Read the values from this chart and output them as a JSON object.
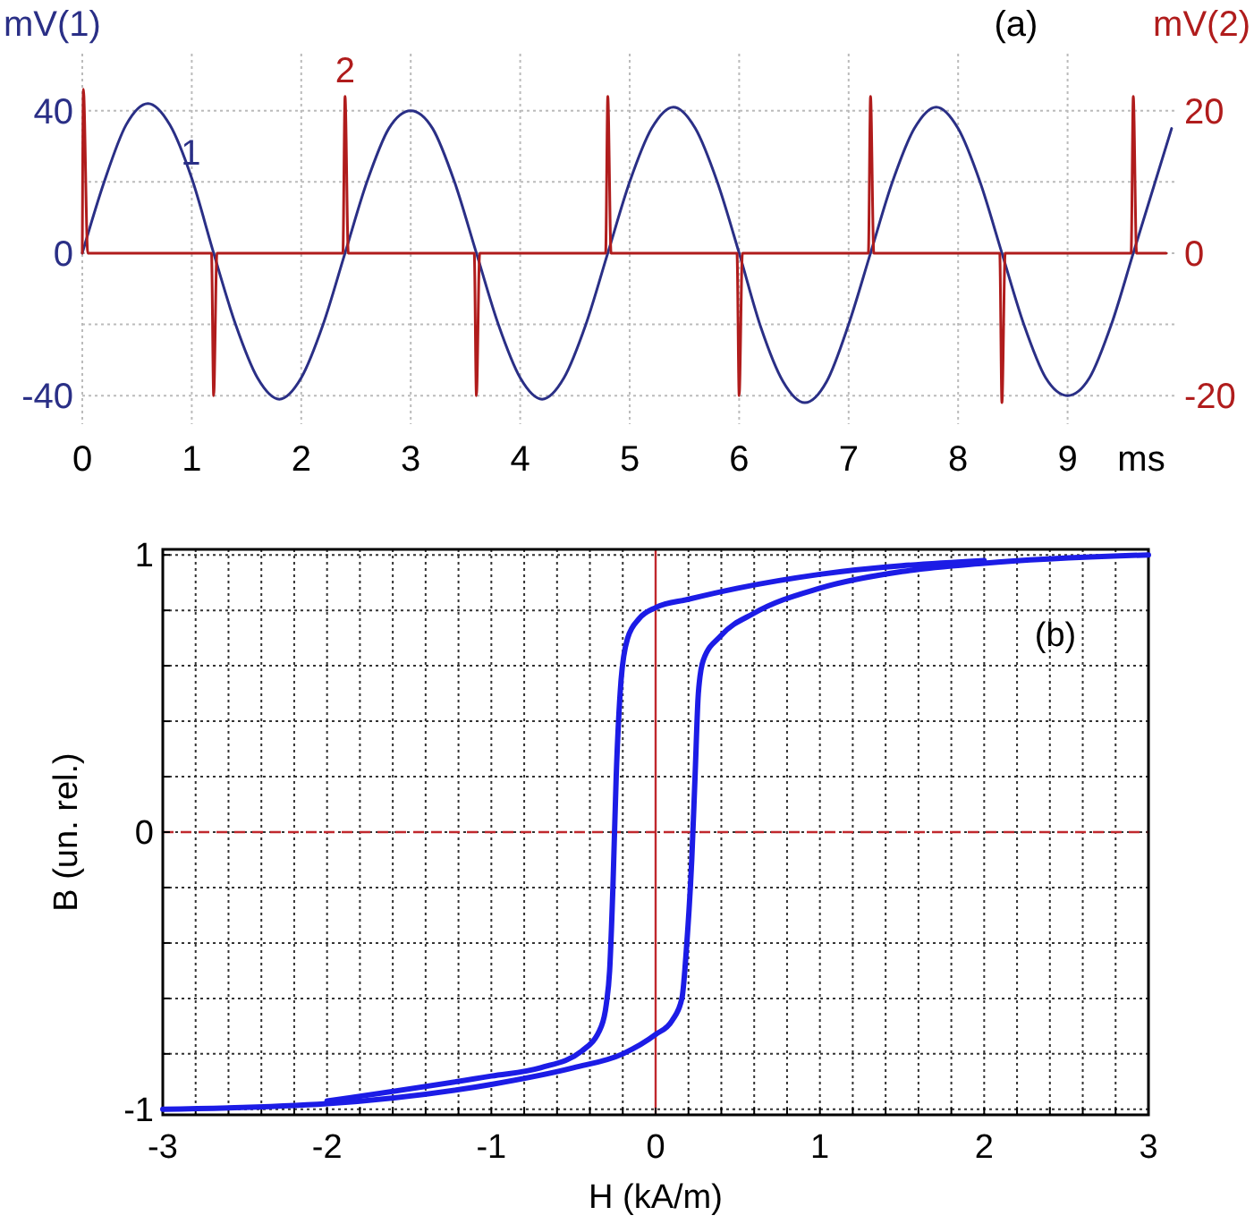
{
  "chart_data": [
    {
      "type": "line",
      "xlabel": "ms",
      "ylabel": "mV(1)",
      "y2label": "mV(2)",
      "annotations": [
        "(a)"
      ],
      "grid": true,
      "marker": "none",
      "line_style": "solid",
      "xlim": [
        0,
        10
      ],
      "xticks": [
        0,
        1,
        2,
        3,
        4,
        5,
        6,
        7,
        8,
        9
      ],
      "ylim": [
        -48,
        56
      ],
      "yticks": [
        -40,
        {
          "value": -20,
          "label": null
        },
        0,
        {
          "value": 20,
          "label": null
        },
        40
      ],
      "y2lim": [
        -24,
        28
      ],
      "y2ticks": [
        -20,
        0,
        20
      ],
      "series": [
        {
          "name": "1",
          "color": "#2a2f86",
          "x": [
            0,
            0.2,
            0.4,
            0.6,
            0.8,
            1.0,
            1.2,
            1.4,
            1.6,
            1.8,
            2.0,
            2.2,
            2.4,
            2.6,
            2.8,
            3.0,
            3.2,
            3.4,
            3.6,
            3.8,
            4.0,
            4.2,
            4.4,
            4.6,
            4.8,
            5.0,
            5.2,
            5.4,
            5.6,
            5.8,
            6.0,
            6.2,
            6.4,
            6.6,
            6.8,
            7.0,
            7.2,
            7.4,
            7.6,
            7.8,
            8.0,
            8.2,
            8.4,
            8.6,
            8.8,
            9.0,
            9.2,
            9.4,
            9.6,
            9.8,
            9.95
          ],
          "values": [
            0,
            20,
            36,
            42,
            36,
            21,
            0,
            -20,
            -35,
            -41,
            -35,
            -20,
            0,
            20,
            35,
            40,
            35,
            20,
            0,
            -20,
            -35,
            -41,
            -35,
            -20,
            0,
            20,
            35,
            41,
            35,
            20,
            0,
            -21,
            -36,
            -42,
            -36,
            -20,
            0,
            20,
            35,
            41,
            35,
            20,
            0,
            -20,
            -35,
            -40,
            -35,
            -20,
            0,
            20,
            35
          ]
        },
        {
          "name": "2",
          "color": "#b01c1c",
          "axis": "y2",
          "x": [
            0,
            0.01,
            0.05,
            1.18,
            1.2,
            1.23,
            2.38,
            2.4,
            2.43,
            3.58,
            3.6,
            3.63,
            4.78,
            4.8,
            4.83,
            5.98,
            6.0,
            6.03,
            7.18,
            7.2,
            7.23,
            8.38,
            8.4,
            8.43,
            9.58,
            9.6,
            9.63,
            9.9
          ],
          "values": [
            0,
            23,
            0,
            0,
            -20,
            0,
            0,
            22,
            0,
            0,
            -20,
            0,
            0,
            22,
            0,
            0,
            -20,
            0,
            0,
            22,
            0,
            0,
            -21,
            0,
            0,
            22,
            0,
            0
          ]
        }
      ]
    },
    {
      "type": "line",
      "xlabel": "H (kA/m)",
      "ylabel": "B (un. rel.)",
      "annotations": [
        "(b)"
      ],
      "grid": true,
      "marker": "none",
      "line_style": "solid",
      "xlim": [
        -3,
        3
      ],
      "xticks": [
        -3,
        {
          "value": -2.8,
          "label": null
        },
        {
          "value": -2.6,
          "label": null
        },
        {
          "value": -2.4,
          "label": null
        },
        {
          "value": -2.2,
          "label": null
        },
        -2,
        {
          "value": -1.8,
          "label": null
        },
        {
          "value": -1.6,
          "label": null
        },
        {
          "value": -1.4,
          "label": null
        },
        {
          "value": -1.2,
          "label": null
        },
        -1,
        {
          "value": -0.8,
          "label": null
        },
        {
          "value": -0.6,
          "label": null
        },
        {
          "value": -0.4,
          "label": null
        },
        {
          "value": -0.2,
          "label": null
        },
        0,
        {
          "value": 0.2,
          "label": null
        },
        {
          "value": 0.4,
          "label": null
        },
        {
          "value": 0.6,
          "label": null
        },
        {
          "value": 0.8,
          "label": null
        },
        1,
        {
          "value": 1.2,
          "label": null
        },
        {
          "value": 1.4,
          "label": null
        },
        {
          "value": 1.6,
          "label": null
        },
        {
          "value": 1.8,
          "label": null
        },
        2,
        {
          "value": 2.2,
          "label": null
        },
        {
          "value": 2.4,
          "label": null
        },
        {
          "value": 2.6,
          "label": null
        },
        {
          "value": 2.8,
          "label": null
        },
        3
      ],
      "ylim": [
        -1.02,
        1.02
      ],
      "yticks": [
        -1,
        {
          "value": -0.8,
          "label": null
        },
        {
          "value": -0.6,
          "label": null
        },
        {
          "value": -0.4,
          "label": null
        },
        {
          "value": -0.2,
          "label": null
        },
        0,
        {
          "value": 0.2,
          "label": null
        },
        {
          "value": 0.4,
          "label": null
        },
        {
          "value": 0.6,
          "label": null
        },
        {
          "value": 0.8,
          "label": null
        },
        1
      ],
      "ref_lines": [
        {
          "axis": "x",
          "value": 0,
          "color": "#c0282d",
          "line_style": "solid"
        },
        {
          "axis": "y",
          "value": 0,
          "color": "#c0282d",
          "line_style": "dashed"
        }
      ],
      "series": [
        {
          "color": "#1c1ce6",
          "x": [
            -3,
            -2,
            -1,
            -0.5,
            -0.2,
            0,
            0.1,
            0.16,
            0.19,
            0.22,
            0.24,
            0.26,
            0.29,
            0.4,
            0.6,
            1,
            1.5,
            2,
            3
          ],
          "values": [
            -1,
            -0.98,
            -0.91,
            -0.85,
            -0.8,
            -0.73,
            -0.68,
            -0.6,
            -0.4,
            -0.1,
            0.2,
            0.5,
            0.62,
            0.71,
            0.79,
            0.88,
            0.94,
            0.97,
            1
          ]
        },
        {
          "color": "#1c1ce6",
          "x": [
            -2,
            -1,
            -0.7,
            -0.45,
            -0.33,
            -0.3,
            -0.28,
            -0.26,
            -0.24,
            -0.21,
            -0.17,
            -0.1,
            0,
            0.2,
            0.5,
            1,
            2
          ],
          "values": [
            -0.97,
            -0.88,
            -0.85,
            -0.79,
            -0.7,
            -0.62,
            -0.5,
            -0.2,
            0.2,
            0.55,
            0.7,
            0.77,
            0.81,
            0.84,
            0.88,
            0.93,
            0.98
          ]
        }
      ]
    }
  ]
}
